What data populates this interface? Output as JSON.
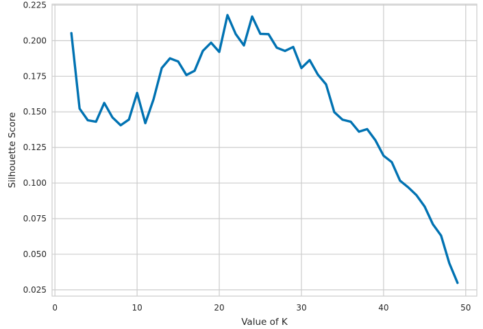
{
  "chart_data": {
    "type": "line",
    "title": "",
    "xlabel": "Value of K",
    "ylabel": "Silhouette Score",
    "xlim": [
      -0.35,
      51.35
    ],
    "ylim": [
      0.0206,
      0.2257
    ],
    "x_ticks": [
      0,
      10,
      20,
      30,
      40,
      50
    ],
    "x_tick_labels": [
      "0",
      "10",
      "20",
      "30",
      "40",
      "50"
    ],
    "y_ticks": [
      0.025,
      0.05,
      0.075,
      0.1,
      0.125,
      0.15,
      0.175,
      0.2,
      0.225
    ],
    "y_tick_labels": [
      "0.025",
      "0.050",
      "0.075",
      "0.100",
      "0.125",
      "0.150",
      "0.175",
      "0.200",
      "0.225"
    ],
    "grid": true,
    "line_color": "#0072b2",
    "grid_color": "#cccccc",
    "series": [
      {
        "x": [
          2,
          3,
          4,
          5,
          6,
          7,
          8,
          9,
          10,
          11,
          12,
          13,
          14,
          15,
          16,
          17,
          18,
          19,
          20,
          21,
          22,
          23,
          24,
          25,
          26,
          27,
          28,
          29,
          30,
          31,
          32,
          33,
          34,
          35,
          36,
          37,
          38,
          39,
          40,
          41,
          42,
          43,
          44,
          45,
          46,
          47,
          48,
          49
        ],
        "values": [
          0.2053,
          0.1523,
          0.1441,
          0.1431,
          0.1563,
          0.1461,
          0.1406,
          0.1446,
          0.1633,
          0.1421,
          0.1588,
          0.1808,
          0.1876,
          0.1854,
          0.1759,
          0.1789,
          0.1928,
          0.1986,
          0.1921,
          0.218,
          0.2047,
          0.1967,
          0.217,
          0.2048,
          0.2046,
          0.1951,
          0.1928,
          0.1956,
          0.1808,
          0.1864,
          0.1762,
          0.1693,
          0.1498,
          0.1445,
          0.1431,
          0.1361,
          0.1379,
          0.1301,
          0.1192,
          0.1147,
          0.1017,
          0.097,
          0.0915,
          0.0835,
          0.0711,
          0.0631,
          0.0437,
          0.0299
        ]
      }
    ]
  }
}
